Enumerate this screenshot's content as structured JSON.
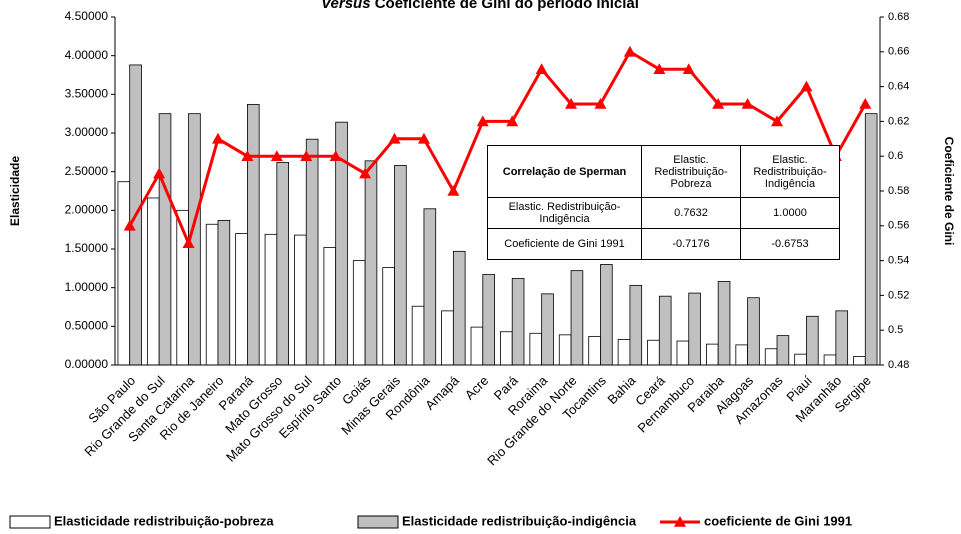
{
  "chart_data": {
    "type": "bar-line",
    "title": [
      "Versus",
      "Coeficiente de Gini do período inicial"
    ],
    "ylabel": "Elasticidade",
    "y2label": "Coeficiente de Gini",
    "categories": [
      "São Paulo",
      "Rio Grande do Sul",
      "Santa Catarina",
      "Rio de Janeiro",
      "Paraná",
      "Mato Grosso",
      "Mato Grosso do Sul",
      "Espírito Santo",
      "Goiás",
      "Minas Gerais",
      "Rondônia",
      "Amapá",
      "Acre",
      "Pará",
      "Roraima",
      "Rio Grande do Norte",
      "Tocantins",
      "Bahia",
      "Ceará",
      "Pernambuco",
      "Paraiba",
      "Alagoas",
      "Amazonas",
      "Piauí",
      "Maranhão",
      "Sergipe"
    ],
    "series": [
      {
        "name": "Elasticidade redistribuição-pobreza",
        "color": "#ffffff",
        "type": "bar",
        "values": [
          2.37,
          2.16,
          2.0,
          1.82,
          1.7,
          1.69,
          1.68,
          1.52,
          1.35,
          1.26,
          0.76,
          0.7,
          0.49,
          0.43,
          0.41,
          0.39,
          0.37,
          0.33,
          0.32,
          0.31,
          0.27,
          0.26,
          0.21,
          0.14,
          0.13,
          0.11
        ]
      },
      {
        "name": "Elasticidade redistribuição-indigência",
        "color": "#c0c0c0",
        "type": "bar",
        "values": [
          3.88,
          3.25,
          3.25,
          1.87,
          3.37,
          2.62,
          2.92,
          3.14,
          2.64,
          2.58,
          2.02,
          1.47,
          1.17,
          1.12,
          0.92,
          1.22,
          1.3,
          1.03,
          0.89,
          0.93,
          1.08,
          0.87,
          0.38,
          0.63,
          0.7,
          3.25
        ]
      },
      {
        "name": "coeficiente de Gini 1991",
        "color": "#ff0000",
        "type": "line",
        "axis": "y2",
        "values": [
          0.56,
          0.59,
          0.55,
          0.61,
          0.6,
          0.6,
          0.6,
          0.6,
          0.59,
          0.61,
          0.61,
          0.58,
          0.62,
          0.62,
          0.65,
          0.63,
          0.63,
          0.66,
          0.65,
          0.65,
          0.63,
          0.63,
          0.62,
          0.64,
          0.6,
          0.63
        ]
      }
    ],
    "ylim": [
      0,
      4.5
    ],
    "yticks": [
      {
        "value": 0,
        "label": "0.00000"
      },
      {
        "value": 0.5,
        "label": "0.50000"
      },
      {
        "value": 1,
        "label": "1.00000"
      },
      {
        "value": 1.5,
        "label": "1.50000"
      },
      {
        "value": 2,
        "label": "2.00000"
      },
      {
        "value": 2.5,
        "label": "2.50000"
      },
      {
        "value": 3,
        "label": "3.00000"
      },
      {
        "value": 3.5,
        "label": "3.50000"
      },
      {
        "value": 4,
        "label": "4.00000"
      },
      {
        "value": 4.5,
        "label": "4.50000"
      }
    ],
    "y2lim": [
      0.48,
      0.68
    ],
    "y2ticks": [
      0.48,
      0.5,
      0.52,
      0.54,
      0.56,
      0.58,
      0.6,
      0.62,
      0.64,
      0.66,
      0.68
    ],
    "table": {
      "header": [
        "Correlação de Sperman",
        "Elastic. Redistribuição-Pobreza",
        "Elastic. Redistribuição-Indigência"
      ],
      "rows": [
        [
          "Elastic. Redistribuição-Indigência",
          "0.7632",
          "1.0000"
        ],
        [
          "Coeficiente de Gini 1991",
          "-0.7176",
          "-0.6753"
        ]
      ]
    }
  }
}
